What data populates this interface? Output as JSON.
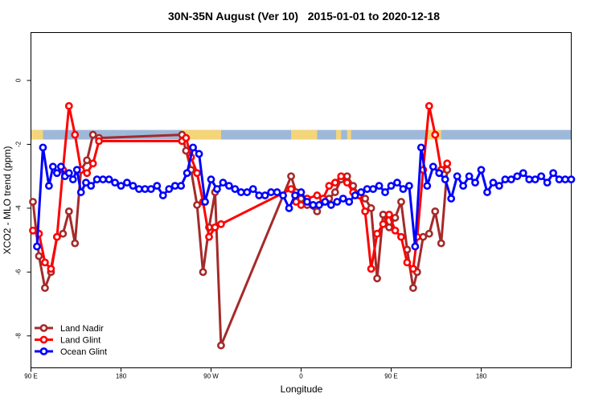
{
  "chart_data": {
    "type": "line",
    "title": "30N-35N August (Ver 10)   2015-01-01 to 2020-12-18",
    "xlabel": "Longitude",
    "ylabel": "XCO2 - MLO trend (ppm)",
    "xlim": [
      0,
      540
    ],
    "ylim": [
      -9,
      1.5
    ],
    "xticks": [
      {
        "value": 0,
        "label": "90 E"
      },
      {
        "value": 90,
        "label": "180"
      },
      {
        "value": 180,
        "label": "90 W"
      },
      {
        "value": 270,
        "label": "0"
      },
      {
        "value": 360,
        "label": "90 E"
      },
      {
        "value": 450,
        "label": "180"
      }
    ],
    "yticks": [
      {
        "value": 0,
        "label": "0"
      },
      {
        "value": -2,
        "label": "-2"
      },
      {
        "value": -4,
        "label": "-4"
      },
      {
        "value": -6,
        "label": "-6"
      },
      {
        "value": -8,
        "label": "-8"
      }
    ],
    "legend_position": "bottom-left",
    "colors": {
      "land": "#f5d57a",
      "ocean": "#9eb8d9"
    },
    "surface_band": {
      "y_top": -1.55,
      "y_bottom": -1.85
    },
    "land_spans": [
      [
        0,
        12
      ],
      [
        150,
        190
      ],
      [
        260,
        286
      ],
      [
        305,
        310
      ],
      [
        316,
        320
      ],
      [
        395,
        410
      ]
    ],
    "series": [
      {
        "name": "Land Nadir",
        "color": "#a52a2a",
        "x": [
          2,
          8,
          14,
          20,
          26,
          32,
          38,
          44,
          50,
          56,
          62,
          68,
          151,
          155,
          160,
          166,
          172,
          178,
          184,
          190,
          260,
          265,
          270,
          276,
          286,
          292,
          298,
          304,
          310,
          316,
          322,
          328,
          334,
          340,
          346,
          352,
          358,
          364,
          370,
          376,
          382,
          386,
          392,
          398,
          404,
          410,
          416
        ],
        "y": [
          -3.8,
          -5.5,
          -6.5,
          -6.0,
          -4.9,
          -4.8,
          -4.1,
          -5.1,
          -2.8,
          -2.5,
          -1.7,
          -1.8,
          -1.7,
          -2.2,
          -2.8,
          -3.9,
          -6.0,
          -4.6,
          -3.5,
          -8.3,
          -3.0,
          -3.5,
          -3.7,
          -3.9,
          -4.1,
          -3.8,
          -3.7,
          -3.5,
          -3.1,
          -3.0,
          -3.3,
          -3.6,
          -3.7,
          -4.0,
          -6.2,
          -4.2,
          -4.6,
          -4.3,
          -3.8,
          -5.3,
          -6.5,
          -6.0,
          -4.9,
          -4.8,
          -4.1,
          -5.1,
          -2.8
        ]
      },
      {
        "name": "Land Glint",
        "color": "#ff0000",
        "x": [
          2,
          8,
          14,
          20,
          26,
          32,
          38,
          44,
          50,
          56,
          62,
          68,
          151,
          155,
          160,
          166,
          172,
          178,
          184,
          190,
          260,
          265,
          270,
          276,
          286,
          292,
          298,
          304,
          310,
          316,
          322,
          328,
          334,
          340,
          346,
          352,
          358,
          364,
          370,
          376,
          382,
          386,
          392,
          398,
          404,
          410,
          416
        ],
        "y": [
          -4.7,
          -4.8,
          -5.7,
          -5.9,
          -4.9,
          -2.8,
          -0.8,
          -1.7,
          -2.8,
          -2.9,
          -2.6,
          -1.9,
          -1.9,
          -1.8,
          -2.4,
          -2.9,
          -3.8,
          -4.9,
          -4.6,
          -4.5,
          -3.4,
          -3.8,
          -3.9,
          -3.7,
          -3.6,
          -3.7,
          -3.3,
          -3.2,
          -3.0,
          -3.2,
          -3.5,
          -3.6,
          -4.1,
          -5.9,
          -4.8,
          -4.5,
          -4.2,
          -4.7,
          -4.9,
          -5.7,
          -5.9,
          -4.9,
          -2.8,
          -0.8,
          -1.7,
          -2.8,
          -2.6
        ]
      },
      {
        "name": "Ocean Glint",
        "color": "#0000ff",
        "x": [
          6,
          12,
          18,
          22,
          26,
          30,
          34,
          38,
          42,
          46,
          50,
          55,
          60,
          66,
          72,
          78,
          84,
          90,
          96,
          102,
          108,
          114,
          120,
          126,
          132,
          138,
          144,
          150,
          156,
          162,
          168,
          174,
          180,
          186,
          192,
          198,
          204,
          210,
          216,
          222,
          228,
          234,
          240,
          246,
          252,
          258,
          264,
          270,
          276,
          282,
          288,
          294,
          300,
          306,
          312,
          318,
          324,
          330,
          336,
          342,
          348,
          354,
          360,
          366,
          372,
          378,
          384,
          390,
          396,
          402,
          408,
          414,
          420,
          426,
          432,
          438,
          444,
          450,
          456,
          462,
          468,
          474,
          480,
          486,
          492,
          498,
          504,
          510,
          516,
          522,
          528,
          534,
          540
        ],
        "y": [
          -5.2,
          -2.1,
          -3.3,
          -2.7,
          -2.9,
          -2.7,
          -3.0,
          -2.9,
          -3.1,
          -2.8,
          -3.5,
          -3.2,
          -3.3,
          -3.1,
          -3.1,
          -3.1,
          -3.2,
          -3.3,
          -3.2,
          -3.3,
          -3.4,
          -3.4,
          -3.4,
          -3.3,
          -3.6,
          -3.4,
          -3.3,
          -3.3,
          -2.9,
          -2.1,
          -2.3,
          -3.8,
          -3.1,
          -3.4,
          -3.2,
          -3.3,
          -3.4,
          -3.5,
          -3.5,
          -3.4,
          -3.6,
          -3.6,
          -3.5,
          -3.5,
          -3.6,
          -4.0,
          -3.6,
          -3.5,
          -3.8,
          -3.9,
          -3.9,
          -3.8,
          -3.9,
          -3.8,
          -3.7,
          -3.8,
          -3.6,
          -3.5,
          -3.4,
          -3.4,
          -3.3,
          -3.5,
          -3.3,
          -3.2,
          -3.4,
          -3.3,
          -5.2,
          -2.1,
          -3.3,
          -2.7,
          -2.9,
          -3.1,
          -3.7,
          -3.0,
          -3.3,
          -3.0,
          -3.2,
          -2.8,
          -3.5,
          -3.2,
          -3.3,
          -3.1,
          -3.1,
          -3.0,
          -2.9,
          -3.1,
          -3.1,
          -3.0,
          -3.2,
          -2.9,
          -3.1,
          -3.1,
          -3.1
        ]
      }
    ]
  }
}
